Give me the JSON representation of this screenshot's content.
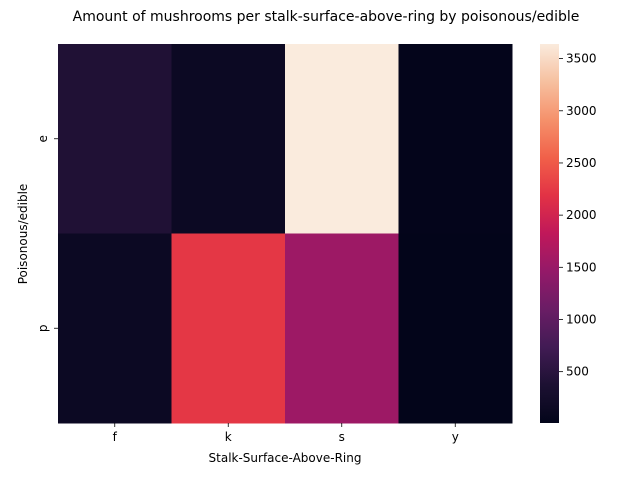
{
  "chart_data": {
    "type": "heatmap",
    "title": "Amount of mushrooms per stalk-surface-above-ring by poisonous/edible",
    "xlabel": "Stalk-Surface-Above-Ring",
    "ylabel": "Poisonous/edible",
    "x_categories": [
      "f",
      "k",
      "s",
      "y"
    ],
    "y_categories": [
      "e",
      "p"
    ],
    "values": [
      [
        408,
        144,
        3640,
        16
      ],
      [
        144,
        2228,
        1536,
        8
      ]
    ],
    "colorbar": {
      "min": 8,
      "max": 3640,
      "ticks": [
        500,
        1000,
        1500,
        2000,
        2500,
        3000,
        3500
      ],
      "colormap": "rocket"
    }
  }
}
